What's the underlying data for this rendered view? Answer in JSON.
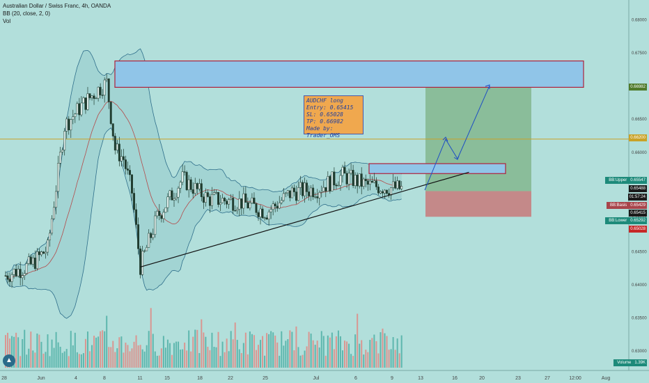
{
  "header": {
    "symbol_line": "Australian Dollar / Swiss Franc, 4h, OANDA",
    "indicator_bb": "BB (20, close, 2, 0)",
    "indicator_vol": "Vol"
  },
  "note": {
    "lines": [
      "AUDCHF long",
      "Entry: 0.65415",
      "SL: 0.65028",
      "TP: 0.66982",
      "Made by: Trader_OMS"
    ]
  },
  "price_tags": {
    "tp": "0.66982",
    "level": "0.66200",
    "bb_upper_label": "BB:Upper",
    "bb_upper": "0.65547",
    "last": "0.65488",
    "countdown": "01:57:24",
    "bb_basis_label": "BB:Basis",
    "bb_basis": "0.65429",
    "entry": "0.65415",
    "bb_lower_label": "BB:Lower",
    "bb_lower": "0.65292",
    "sl": "0.65028",
    "volume_label": "Volume",
    "volume": "1.39K"
  },
  "colors": {
    "background": "#b2dfdb",
    "up_candle": "#1f3b2e",
    "down_candle": "#1f3b2e",
    "bb_band": "#2e6e8a",
    "bb_basis": "#b44a4a",
    "level_line": "#c9a227",
    "target_zone": "#90c5e8",
    "zone_border": "#b0203a",
    "profit_box": "#7fb48a",
    "loss_box": "#c77a7a",
    "arrow": "#1f4fc4",
    "vol_up": "#4fb0a6",
    "vol_down": "#e08a84"
  },
  "chart_data": {
    "type": "candlestick",
    "title": "Australian Dollar / Swiss Franc, 4h, OANDA",
    "ylim": [
      0.6275,
      0.683
    ],
    "y_ticks": [
      "0.68000",
      "0.67500",
      "0.66500",
      "0.66000",
      "0.65000",
      "0.64500",
      "0.64000",
      "0.63500",
      "0.63000"
    ],
    "x_ticks": [
      "28",
      "Jun",
      "4",
      "8",
      "11",
      "15",
      "18",
      "22",
      "25",
      "Jul",
      "6",
      "9",
      "13",
      "16",
      "20",
      "23",
      "27",
      "12:00",
      "Aug"
    ],
    "price_path": [
      {
        "x": "May 27",
        "y": 0.6414
      },
      {
        "x": "May 30",
        "y": 0.643
      },
      {
        "x": "Jun 1",
        "y": 0.6455
      },
      {
        "x": "Jun 3",
        "y": 0.664
      },
      {
        "x": "Jun 5",
        "y": 0.667
      },
      {
        "x": "Jun 7",
        "y": 0.6695
      },
      {
        "x": "Jun 8",
        "y": 0.6705
      },
      {
        "x": "Jun 9",
        "y": 0.6605
      },
      {
        "x": "Jun 10",
        "y": 0.659
      },
      {
        "x": "Jun 11",
        "y": 0.654
      },
      {
        "x": "Jun 12",
        "y": 0.6428
      },
      {
        "x": "Jun 14",
        "y": 0.6502
      },
      {
        "x": "Jun 17",
        "y": 0.656
      },
      {
        "x": "Jun 20",
        "y": 0.653
      },
      {
        "x": "Jun 24",
        "y": 0.6525
      },
      {
        "x": "Jun 27",
        "y": 0.651
      },
      {
        "x": "Jun 30",
        "y": 0.654
      },
      {
        "x": "Jul 3",
        "y": 0.6545
      },
      {
        "x": "Jul 6",
        "y": 0.6565
      },
      {
        "x": "Jul 9",
        "y": 0.655
      },
      {
        "x": "Jul 13",
        "y": 0.6545
      }
    ],
    "annotations": {
      "horizontal_level": 0.662,
      "target_zone": [
        0.66982,
        0.6738
      ],
      "entry_zone": [
        0.6568,
        0.6583
      ],
      "entry": 0.65415,
      "stop_loss": 0.65028,
      "take_profit": 0.66982,
      "trendline": [
        {
          "x": "Jun 12",
          "y": 0.6427
        },
        {
          "x": "Jul 21",
          "y": 0.657
        }
      ]
    }
  }
}
